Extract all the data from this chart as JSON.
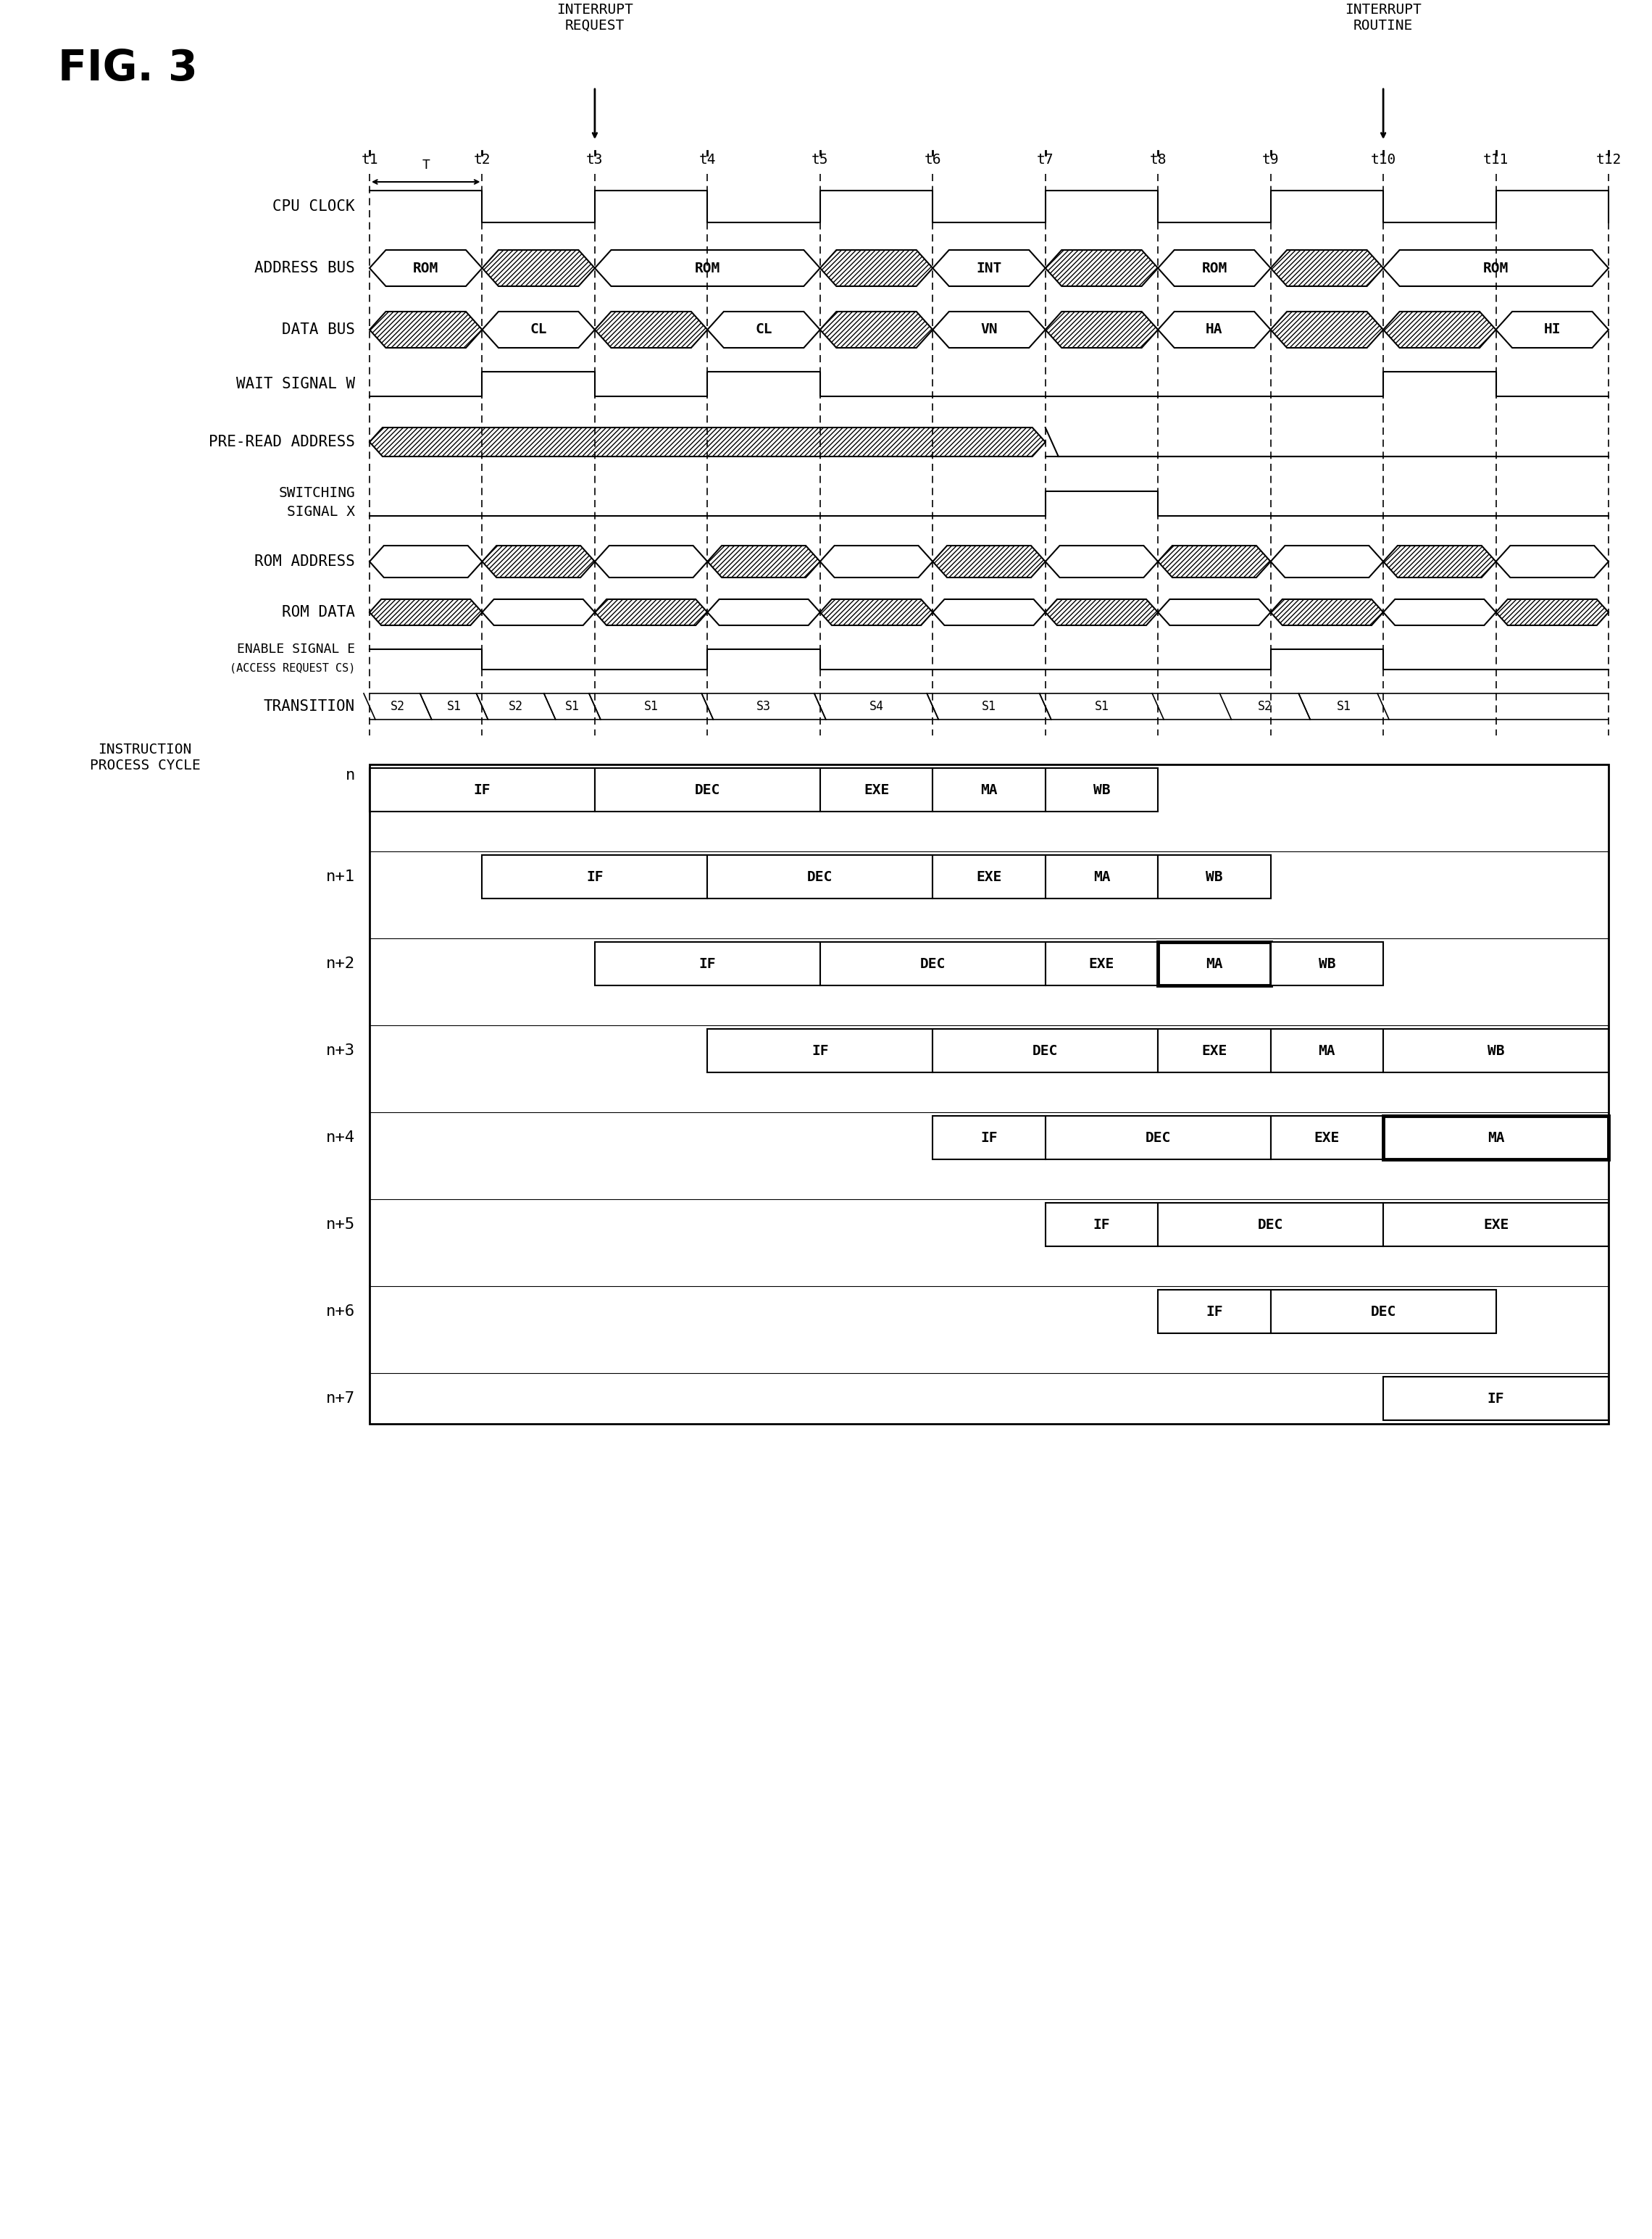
{
  "title": "FIG. 3",
  "fig_width": 22.8,
  "fig_height": 30.9,
  "background_color": "#ffffff",
  "time_labels": [
    "t1",
    "t2",
    "t3",
    "t4",
    "t5",
    "t6",
    "t7",
    "t8",
    "t9",
    "t10",
    "t11",
    "t12"
  ],
  "interrupt_request_t": 3,
  "interrupt_routine_t": 10,
  "pipeline_rows": [
    {
      "label": "n",
      "stages": [
        [
          "IF",
          1,
          3
        ],
        [
          "DEC",
          3,
          5
        ],
        [
          "EXE",
          5,
          6
        ],
        [
          "MA",
          6,
          7
        ],
        [
          "WB",
          7,
          8
        ]
      ]
    },
    {
      "label": "n+1",
      "stages": [
        [
          "IF",
          2,
          4
        ],
        [
          "DEC",
          4,
          6
        ],
        [
          "EXE",
          6,
          7
        ],
        [
          "MA",
          7,
          8
        ],
        [
          "WB",
          8,
          9
        ]
      ]
    },
    {
      "label": "n+2",
      "stages": [
        [
          "IF",
          3,
          5
        ],
        [
          "DEC",
          5,
          7
        ],
        [
          "EXE",
          7,
          8
        ],
        [
          "MA",
          8,
          9
        ],
        [
          "WB",
          9,
          10
        ]
      ],
      "ma_thick": true
    },
    {
      "label": "n+3",
      "stages": [
        [
          "IF",
          4,
          6
        ],
        [
          "DEC",
          6,
          8
        ],
        [
          "EXE",
          8,
          9
        ],
        [
          "MA",
          9,
          10
        ],
        [
          "WB",
          10,
          12
        ]
      ]
    },
    {
      "label": "n+4",
      "stages": [
        [
          "IF",
          6,
          7
        ],
        [
          "DEC",
          7,
          9
        ],
        [
          "EXE",
          9,
          10
        ],
        [
          "MA",
          10,
          12
        ]
      ],
      "ma_thick": true
    },
    {
      "label": "n+5",
      "stages": [
        [
          "IF",
          7,
          8
        ],
        [
          "DEC",
          8,
          10
        ],
        [
          "EXE",
          10,
          12
        ]
      ]
    },
    {
      "label": "n+6",
      "stages": [
        [
          "IF",
          8,
          9
        ],
        [
          "DEC",
          9,
          11
        ]
      ]
    },
    {
      "label": "n+7",
      "stages": [
        [
          "IF",
          10,
          12
        ]
      ]
    }
  ],
  "addr_segs": [
    [
      1,
      2,
      "ROM",
      false
    ],
    [
      2,
      3,
      "",
      true
    ],
    [
      3,
      5,
      "ROM",
      false
    ],
    [
      5,
      6,
      "",
      true
    ],
    [
      6,
      7,
      "INT",
      false
    ],
    [
      7,
      8,
      "",
      true
    ],
    [
      8,
      9,
      "ROM",
      false
    ],
    [
      9,
      10,
      "",
      true
    ],
    [
      10,
      12,
      "ROM",
      false
    ]
  ],
  "data_segs": [
    [
      1,
      2,
      "",
      true
    ],
    [
      2,
      3,
      "CL",
      false
    ],
    [
      3,
      4,
      "",
      true
    ],
    [
      4,
      5,
      "CL",
      false
    ],
    [
      5,
      6,
      "",
      true
    ],
    [
      6,
      7,
      "VN",
      false
    ],
    [
      7,
      8,
      "",
      true
    ],
    [
      8,
      9,
      "HA",
      false
    ],
    [
      9,
      10,
      "",
      true
    ],
    [
      10,
      11,
      "",
      true
    ],
    [
      11,
      12,
      "HI",
      false
    ]
  ],
  "rom_addr_segs": [
    [
      1,
      2,
      "",
      false
    ],
    [
      2,
      3,
      "",
      true
    ],
    [
      3,
      4,
      "",
      false
    ],
    [
      4,
      5,
      "",
      true
    ],
    [
      5,
      6,
      "",
      false
    ],
    [
      6,
      7,
      "",
      true
    ],
    [
      7,
      8,
      "",
      false
    ],
    [
      8,
      9,
      "",
      true
    ],
    [
      9,
      10,
      "",
      false
    ],
    [
      10,
      11,
      "",
      true
    ],
    [
      11,
      12,
      "",
      false
    ]
  ],
  "rom_data_segs": [
    [
      1,
      2,
      "",
      true
    ],
    [
      2,
      3,
      "",
      false
    ],
    [
      3,
      4,
      "",
      true
    ],
    [
      4,
      5,
      "",
      false
    ],
    [
      5,
      6,
      "",
      true
    ],
    [
      6,
      7,
      "",
      false
    ],
    [
      7,
      8,
      "",
      true
    ],
    [
      8,
      9,
      "",
      false
    ],
    [
      9,
      10,
      "",
      true
    ],
    [
      10,
      11,
      "",
      false
    ],
    [
      11,
      12,
      "",
      true
    ]
  ]
}
